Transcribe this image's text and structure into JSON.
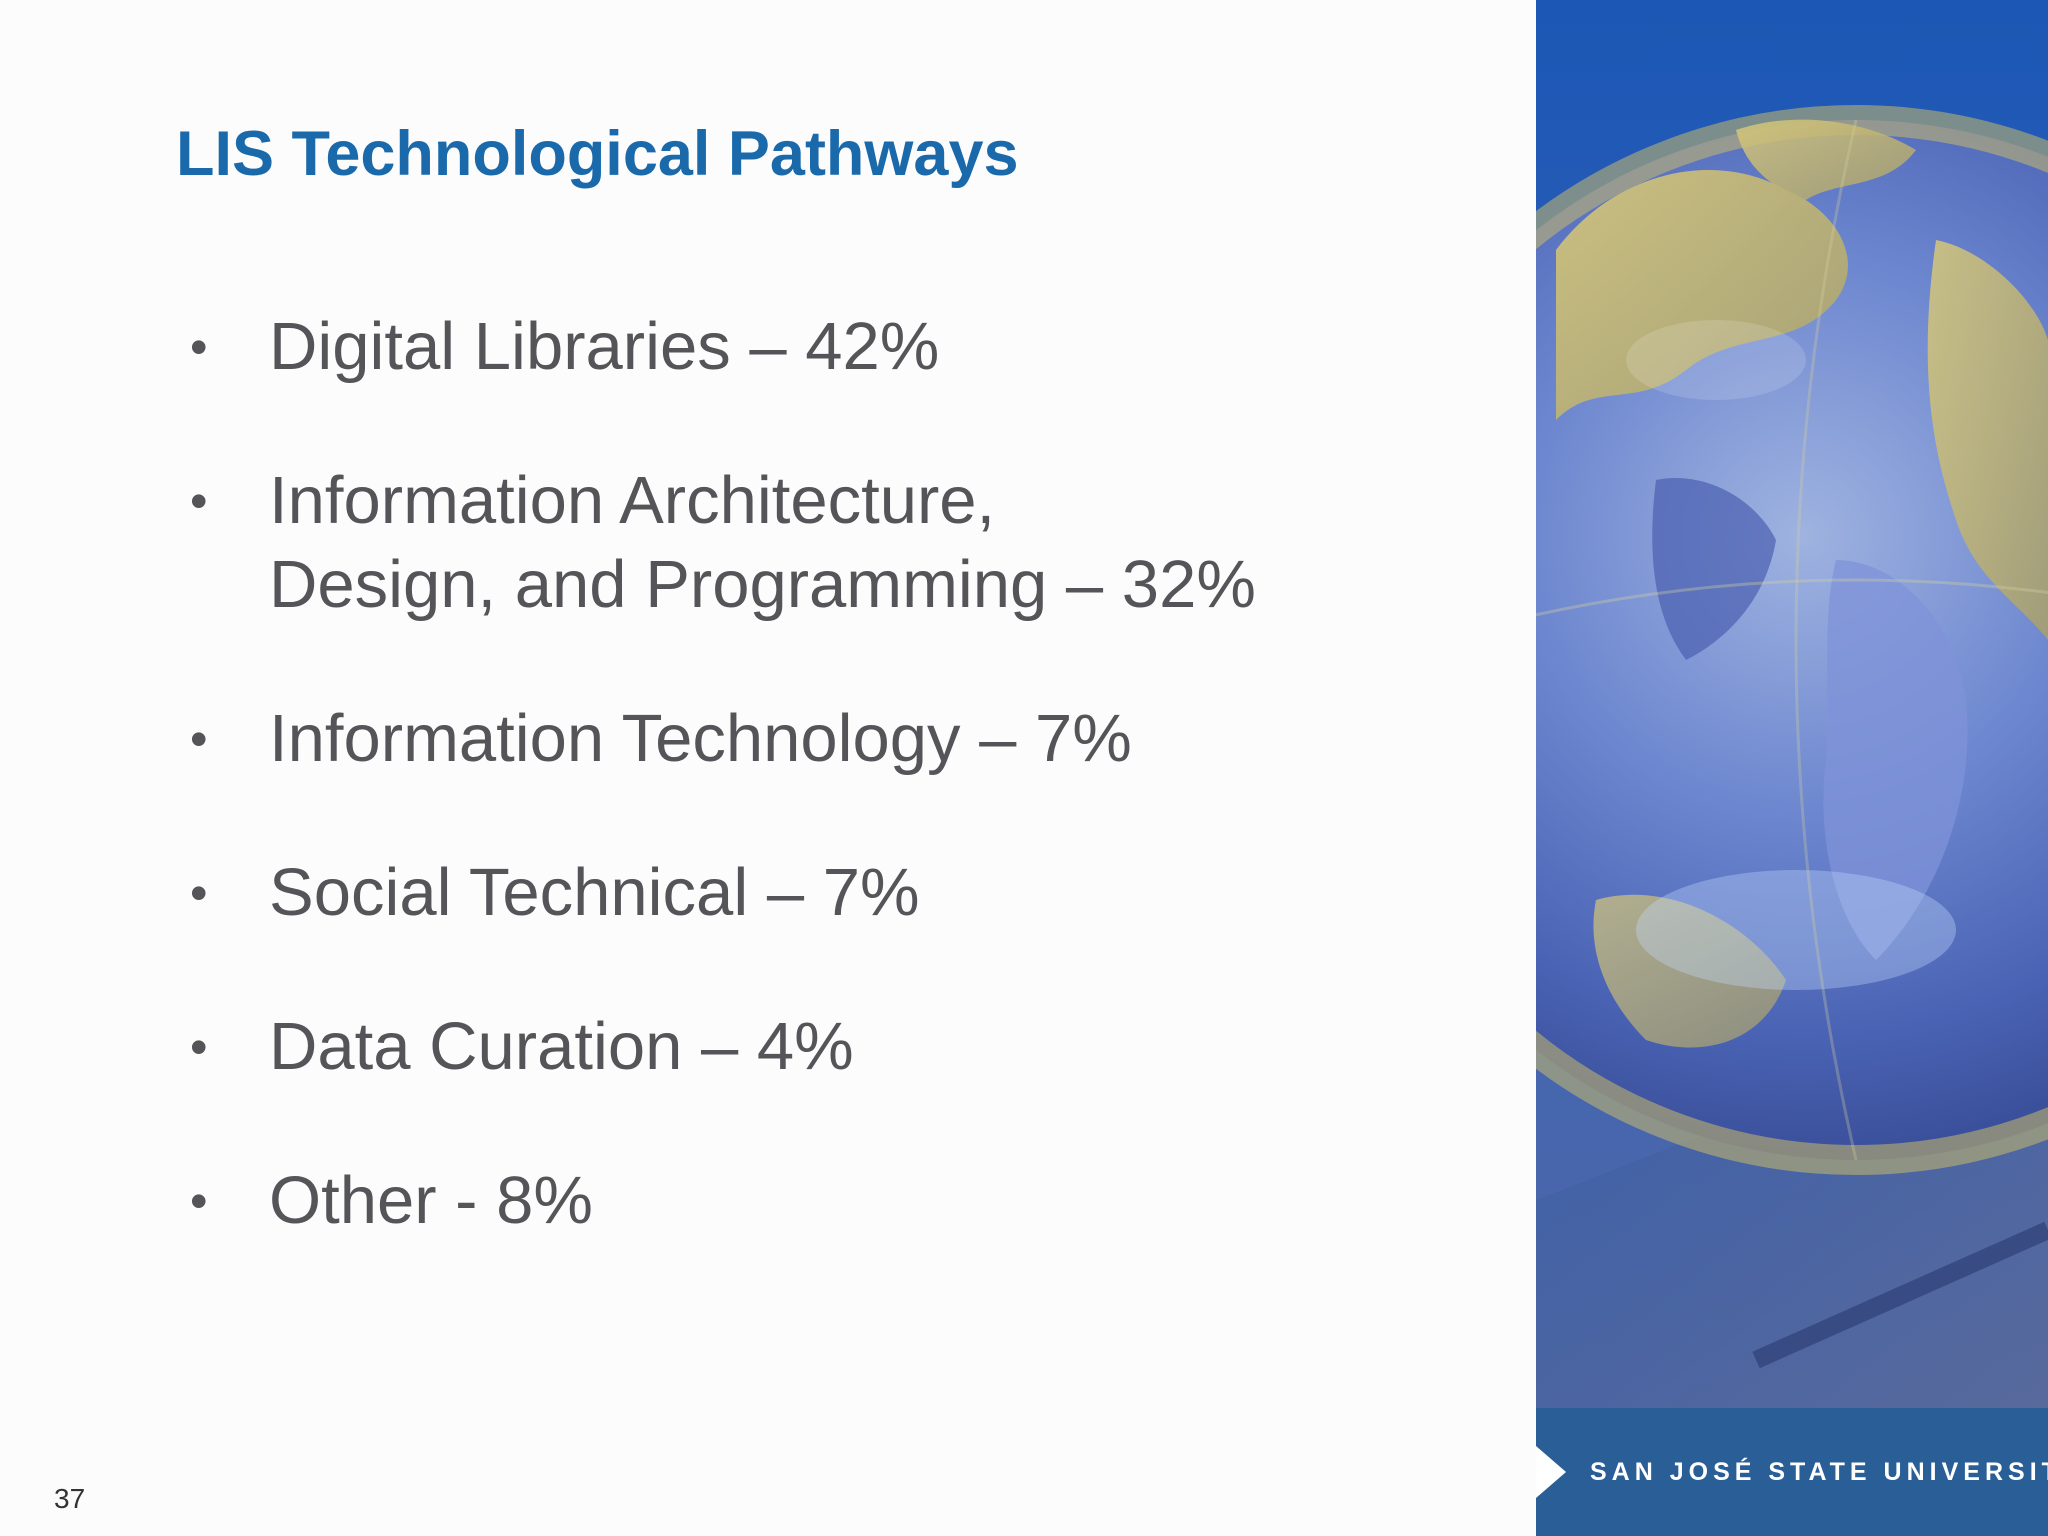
{
  "slide": {
    "title": "LIS Technological Pathways",
    "bullets": [
      {
        "line1": "Digital Libraries – 42%",
        "line2": ""
      },
      {
        "line1": "Information Architecture,",
        "line2": "Design, and Programming – 32%"
      },
      {
        "line1": "Information Technology – 7%",
        "line2": ""
      },
      {
        "line1": "Social Technical – 7%",
        "line2": ""
      },
      {
        "line1": "Data Curation – 4%",
        "line2": ""
      },
      {
        "line1": "Other  - 8%",
        "line2": ""
      }
    ],
    "bullet_glyph": "•",
    "page_number": "37"
  },
  "footer": {
    "university": "SAN JOSÉ STATE UNIVERSITY"
  },
  "colors": {
    "title": "#1a6aab",
    "body_text": "#555559",
    "footer_bar": "#2a5e97"
  },
  "icons": {
    "photo": "globe-photo",
    "footer_marker": "triangle-arrow-icon"
  }
}
